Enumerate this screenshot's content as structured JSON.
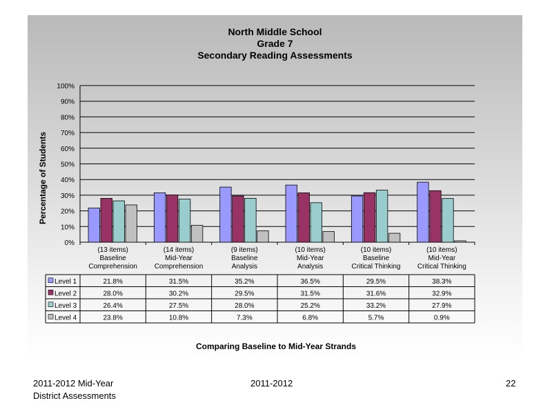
{
  "chart_data": {
    "type": "bar",
    "title_lines": [
      "North Middle School",
      "Grade 7",
      "Secondary Reading Assessments"
    ],
    "ylabel": "Percentage of Students",
    "xlabel": "Comparing Baseline to Mid-Year Strands",
    "ylim": [
      0,
      100
    ],
    "y_ticks": [
      "0%",
      "10%",
      "20%",
      "30%",
      "40%",
      "50%",
      "60%",
      "70%",
      "80%",
      "90%",
      "100%"
    ],
    "grid": true,
    "categories": [
      [
        "(13 items)",
        "Baseline",
        "Comprehension"
      ],
      [
        "(14 items)",
        "Mid-Year",
        "Comprehension"
      ],
      [
        "(9 items)",
        "Baseline",
        "Analysis"
      ],
      [
        "(10 items)",
        "Mid-Year",
        "Analysis"
      ],
      [
        "(10 items)",
        "Baseline",
        "Critical Thinking"
      ],
      [
        "(10 items)",
        "Mid-Year",
        "Critical Thinking"
      ]
    ],
    "series": [
      {
        "name": "Level 1",
        "color": "#9999ff",
        "values": [
          21.8,
          31.5,
          35.2,
          36.5,
          29.5,
          38.3
        ],
        "labels": [
          "21.8%",
          "31.5%",
          "35.2%",
          "36.5%",
          "29.5%",
          "38.3%"
        ]
      },
      {
        "name": "Level 2",
        "color": "#993366",
        "values": [
          28.0,
          30.2,
          29.5,
          31.5,
          31.6,
          32.9
        ],
        "labels": [
          "28.0%",
          "30.2%",
          "29.5%",
          "31.5%",
          "31.6%",
          "32.9%"
        ]
      },
      {
        "name": "Level 3",
        "color": "#99cccc",
        "values": [
          26.4,
          27.5,
          28.0,
          25.2,
          33.2,
          27.9
        ],
        "labels": [
          "26.4%",
          "27.5%",
          "28.0%",
          "25.2%",
          "33.2%",
          "27.9%"
        ]
      },
      {
        "name": "Level 4",
        "color": "#c0c0c0",
        "values": [
          23.8,
          10.8,
          7.3,
          6.8,
          5.7,
          0.9
        ],
        "labels": [
          "23.8%",
          "10.8%",
          "7.3%",
          "6.8%",
          "5.7%",
          "0.9%"
        ]
      }
    ]
  },
  "footer": {
    "left_line1": "2011-2012  Mid-Year",
    "left_line2": "District Assessments",
    "center": "2011-2012",
    "page_number": "22"
  }
}
